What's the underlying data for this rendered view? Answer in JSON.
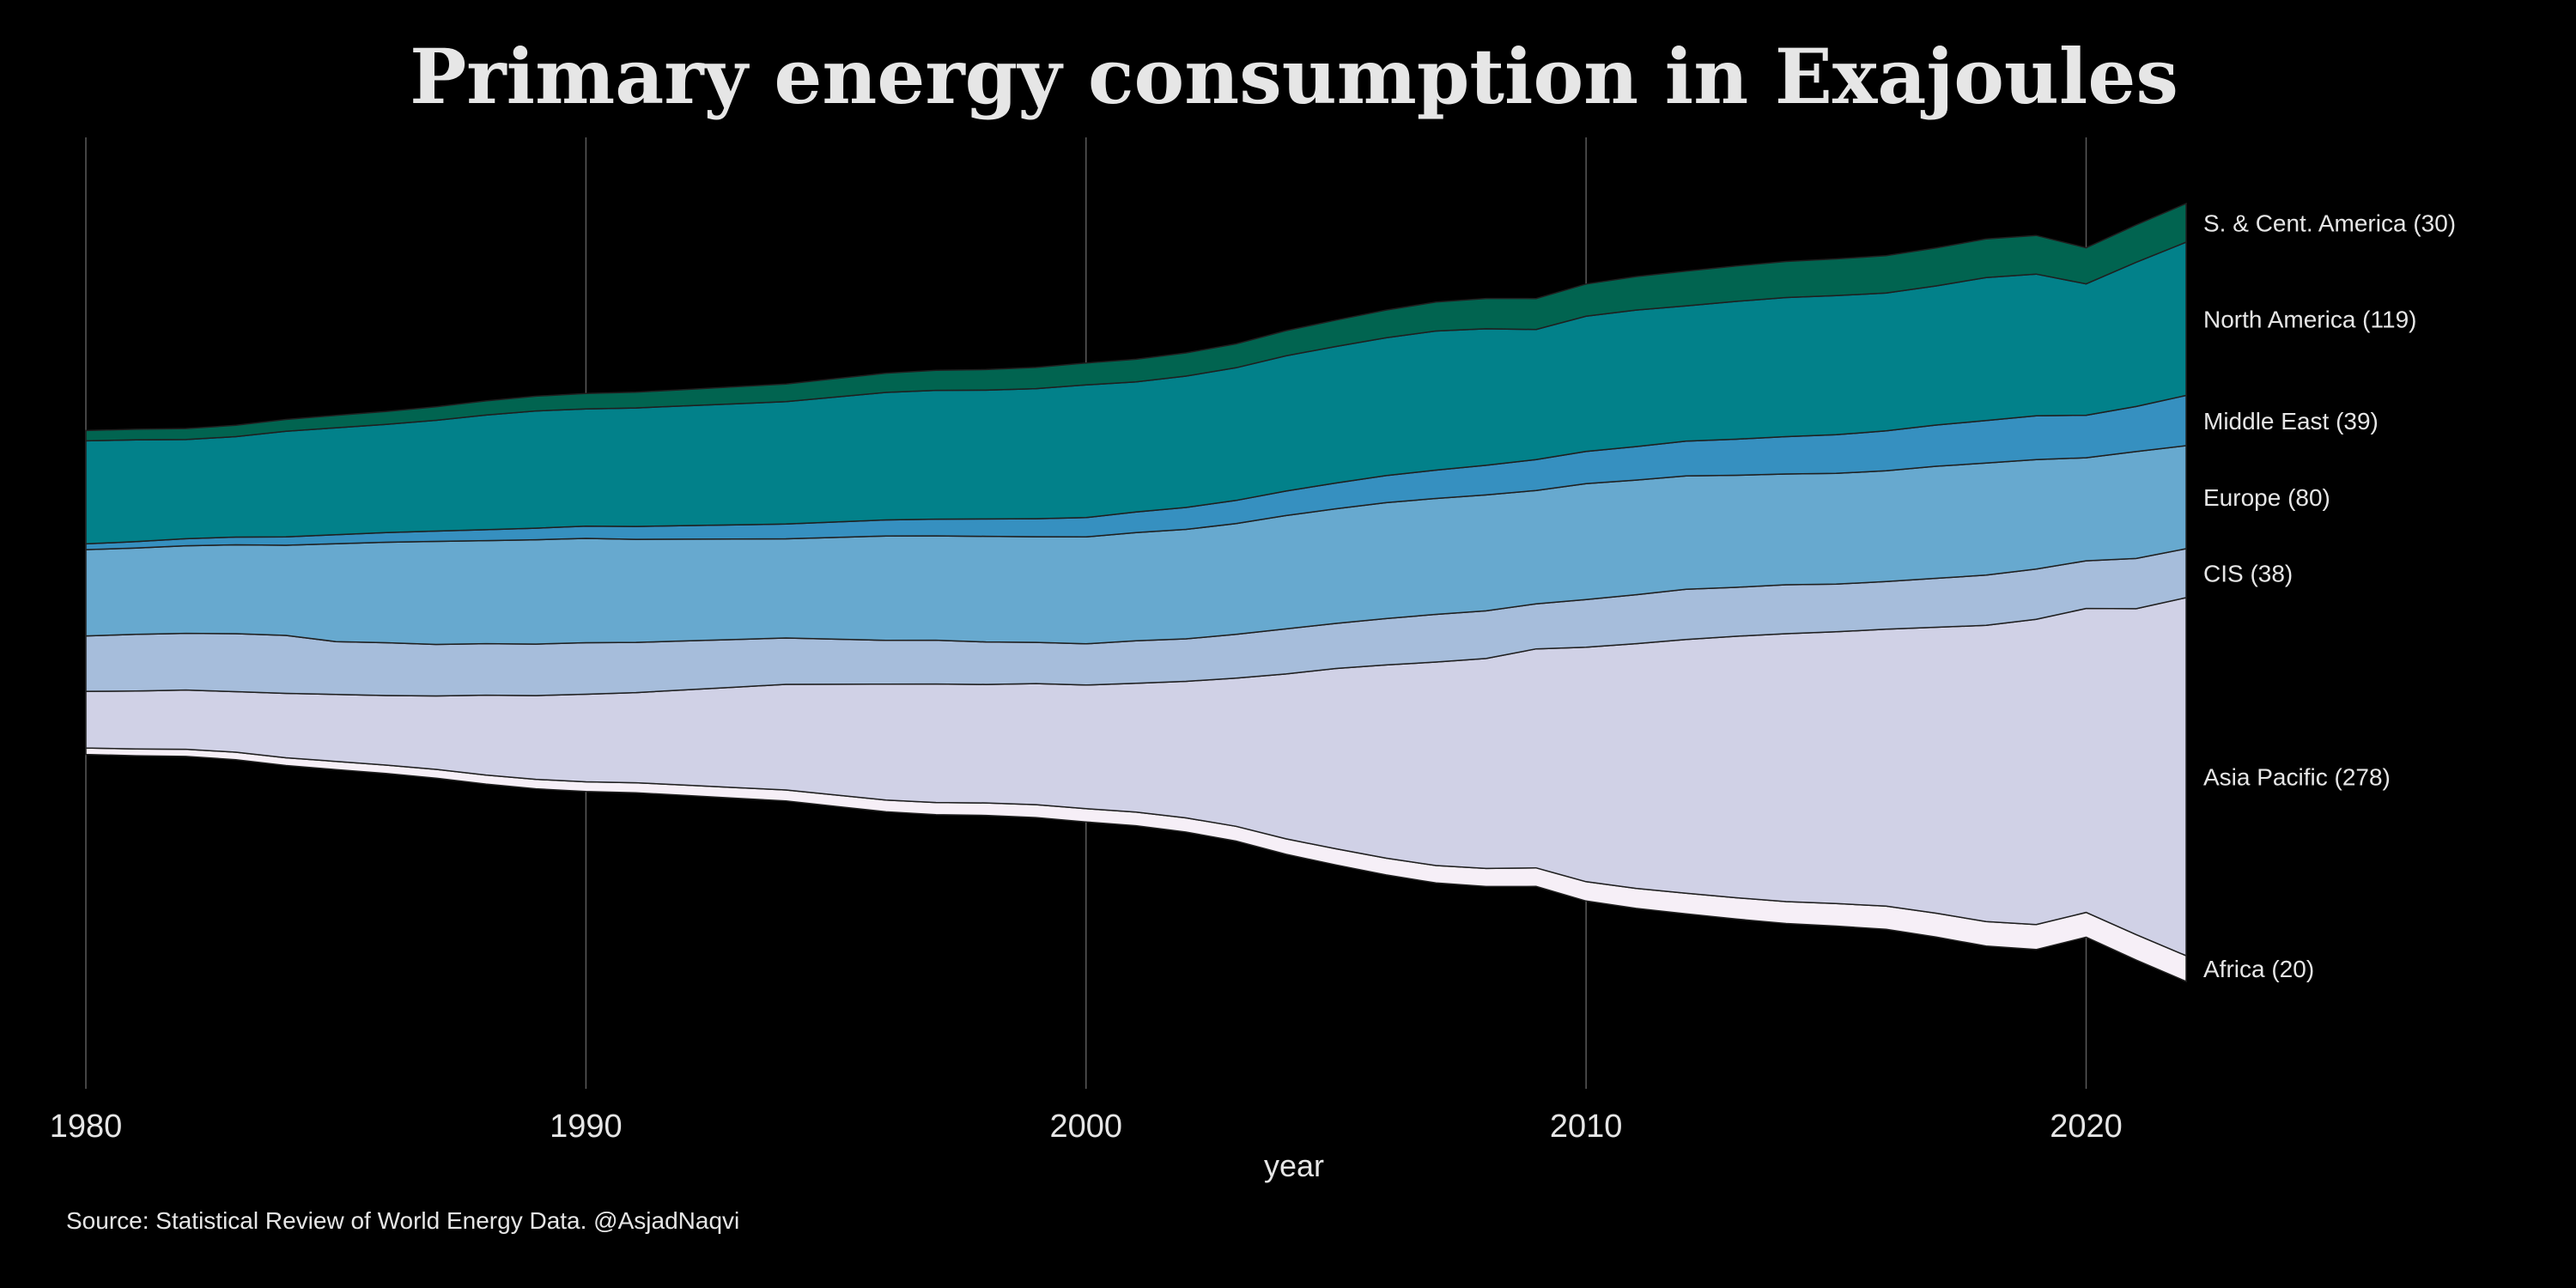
{
  "chart_data": {
    "type": "area",
    "subtype": "streamgraph",
    "title": "Primary energy consumption in Exajoules",
    "xlabel": "year",
    "ylabel": "",
    "source": "Source: Statistical Review of World Energy Data. @AsjadNaqvi",
    "xlim": [
      1980,
      2022
    ],
    "x_ticks": [
      1980,
      1990,
      2000,
      2010,
      2020
    ],
    "grid": "vertical",
    "legend": "direct labels at right",
    "x": [
      1980,
      1981,
      1982,
      1983,
      1984,
      1985,
      1986,
      1987,
      1988,
      1989,
      1990,
      1991,
      1992,
      1993,
      1994,
      1995,
      1996,
      1997,
      1998,
      1999,
      2000,
      2001,
      2002,
      2003,
      2004,
      2005,
      2006,
      2007,
      2008,
      2009,
      2010,
      2011,
      2012,
      2013,
      2014,
      2015,
      2016,
      2017,
      2018,
      2019,
      2020,
      2021,
      2022
    ],
    "series": [
      {
        "name": "Africa",
        "label": "Africa (20)",
        "color": "#f6eff7",
        "values": [
          5,
          5.2,
          5.5,
          5.8,
          6,
          6.3,
          6.5,
          6.8,
          7,
          7.3,
          7.5,
          7.8,
          8,
          8.3,
          8.5,
          8.8,
          9.1,
          9.4,
          9.7,
          10,
          10.3,
          10.6,
          11,
          11.5,
          12,
          12.5,
          13,
          13.5,
          14,
          14.4,
          15,
          15.5,
          16,
          16.5,
          17,
          17.5,
          18,
          18.5,
          19,
          19.4,
          19.2,
          19.8,
          20
        ]
      },
      {
        "name": "Asia Pacific",
        "label": "Asia Pacific (278)",
        "color": "#d0d1e6",
        "values": [
          44,
          45,
          46,
          47,
          50,
          52,
          54,
          57,
          62,
          65,
          68,
          70,
          74,
          78,
          82,
          86,
          90,
          92,
          92,
          94,
          96,
          100,
          106,
          115,
          128,
          140,
          150,
          158,
          163,
          170,
          182,
          190,
          197,
          203,
          208,
          211,
          215,
          222,
          230,
          237,
          236,
          253,
          278
        ]
      },
      {
        "name": "CIS",
        "label": "CIS (38)",
        "color": "#a6bddb",
        "values": [
          43,
          44,
          44,
          45,
          45,
          41,
          41,
          40,
          40,
          40,
          40,
          39,
          38,
          37,
          36,
          35,
          34,
          34,
          33,
          32,
          32,
          33,
          33,
          34,
          35,
          35,
          36,
          37,
          37,
          35,
          37,
          38,
          39,
          38,
          38,
          37,
          37,
          38,
          39,
          39,
          37,
          39,
          38
        ]
      },
      {
        "name": "Europe",
        "label": "Europe (80)",
        "color": "#67a9cf",
        "values": [
          67,
          67,
          68,
          69,
          70,
          76,
          78,
          80,
          80,
          81,
          81,
          80,
          79,
          78,
          77,
          79,
          81,
          81,
          82,
          82,
          83,
          84,
          85,
          86,
          88,
          89,
          90,
          90,
          90,
          88,
          90,
          89,
          88,
          87,
          86,
          86,
          86,
          87,
          87,
          85,
          80,
          83,
          80
        ]
      },
      {
        "name": "Middle East",
        "label": "Middle East (39)",
        "color": "#3690c0",
        "values": [
          4.5,
          5,
          5.5,
          6,
          6.5,
          7,
          7.5,
          8,
          8.5,
          9,
          9.5,
          10,
          10.5,
          11,
          11.5,
          12,
          12.5,
          13,
          13.5,
          14,
          15,
          16,
          17,
          18,
          19,
          20,
          21,
          22,
          23,
          24,
          25,
          26,
          27,
          28,
          29,
          30,
          31,
          32,
          33,
          34,
          33,
          35,
          39
        ]
      },
      {
        "name": "North America",
        "label": "North America (119)",
        "color": "#02818a",
        "values": [
          80,
          79,
          77,
          78,
          82,
          83,
          84,
          86,
          89,
          91,
          91,
          92,
          93,
          94,
          95,
          97,
          99,
          100,
          100,
          101,
          103,
          101,
          102,
          103,
          105,
          106,
          107,
          108,
          106,
          101,
          105,
          106,
          105,
          107,
          108,
          108,
          107,
          108,
          111,
          110,
          102,
          112,
          119
        ]
      },
      {
        "name": "S. & Cent. America",
        "label": "S. & Cent. America (30)",
        "color": "#016450",
        "values": [
          8,
          8.3,
          8.5,
          8.8,
          9.2,
          9.6,
          10,
          10.5,
          11,
          11.5,
          12,
          12.3,
          12.7,
          13.2,
          13.7,
          14.3,
          14.9,
          15.5,
          16,
          16.5,
          17,
          17.5,
          18,
          18.5,
          19.5,
          20.5,
          21.5,
          22.5,
          23.5,
          24,
          25,
          26,
          27,
          27.5,
          28,
          28.5,
          29,
          29.5,
          30,
          30,
          28,
          29,
          30
        ]
      }
    ]
  }
}
